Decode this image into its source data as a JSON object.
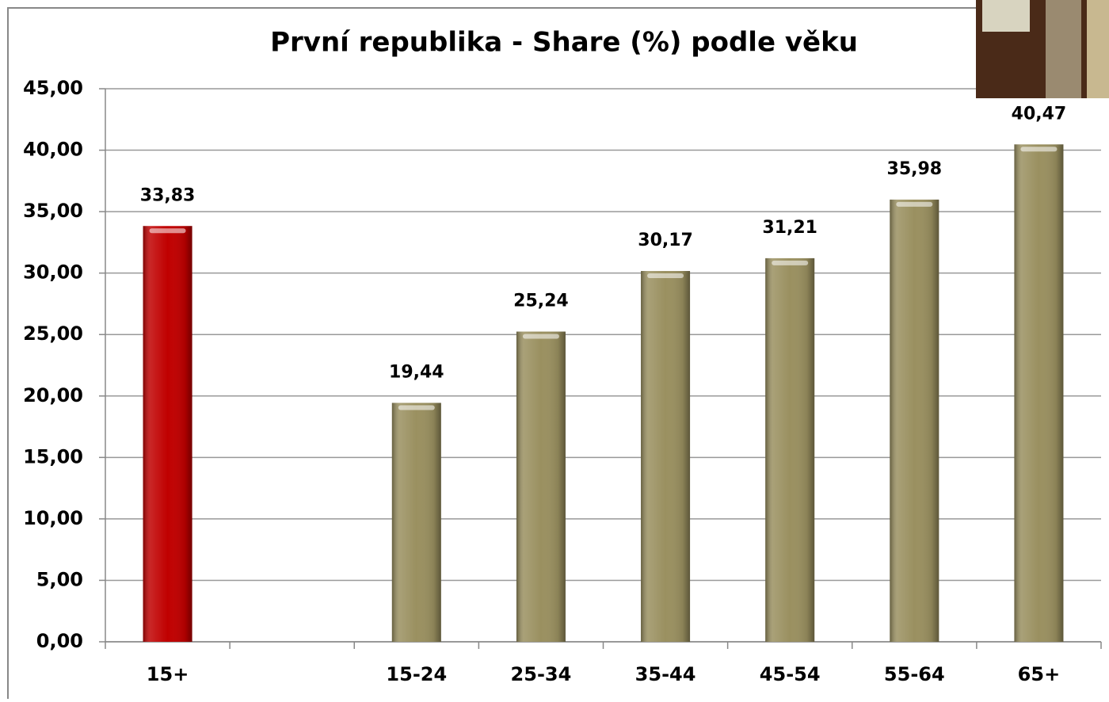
{
  "chart_data": {
    "type": "bar",
    "title": "První republika - Share (%) podle věku",
    "categories": [
      "15+",
      null,
      "15-24",
      "25-34",
      "35-44",
      "45-54",
      "55-64",
      "65+"
    ],
    "values": [
      33.83,
      null,
      19.44,
      25.24,
      30.17,
      31.21,
      35.98,
      40.47
    ],
    "value_labels": [
      "33,83",
      null,
      "19,44",
      "25,24",
      "30,17",
      "31,21",
      "35,98",
      "40,47"
    ],
    "colors": [
      "#c00000",
      null,
      "#9a9060",
      "#9a9060",
      "#9a9060",
      "#9a9060",
      "#9a9060",
      "#9a9060"
    ],
    "ylim": [
      0,
      45
    ],
    "yticks": [
      {
        "value": 0,
        "label": "0,00"
      },
      {
        "value": 5,
        "label": "5,00"
      },
      {
        "value": 10,
        "label": "10,00"
      },
      {
        "value": 15,
        "label": "15,00"
      },
      {
        "value": 20,
        "label": "20,00"
      },
      {
        "value": 25,
        "label": "25,00"
      },
      {
        "value": 30,
        "label": "30,00"
      },
      {
        "value": 35,
        "label": "35,00"
      },
      {
        "value": 40,
        "label": "40,00"
      },
      {
        "value": 45,
        "label": "45,00"
      }
    ],
    "grid": true
  }
}
